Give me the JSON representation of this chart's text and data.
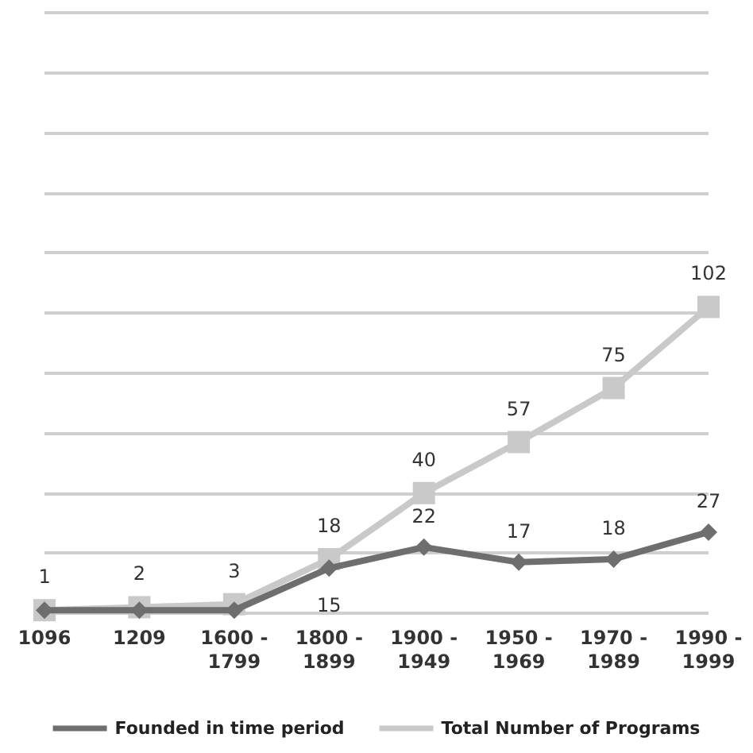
{
  "chart_data": {
    "type": "line",
    "categories": [
      "1096",
      "1209",
      "1600 -\n1799",
      "1800 -\n1899",
      "1900 -\n1949",
      "1950 -\n1969",
      "1970 -\n1989",
      "1990 -\n1999"
    ],
    "series": [
      {
        "name": "Founded in time period",
        "color": "#6e6e6e",
        "marker": "diamond",
        "values": [
          1,
          1,
          1,
          15,
          22,
          17,
          18,
          27
        ],
        "value_labels": [
          null,
          null,
          null,
          "15",
          "22",
          "17",
          "18",
          "27"
        ]
      },
      {
        "name": "Total Number of Programs",
        "color": "#c9c9c9",
        "marker": "square",
        "values": [
          1,
          2,
          3,
          18,
          40,
          57,
          75,
          102
        ],
        "value_labels": [
          "1",
          "2",
          "3",
          "18",
          "40",
          "57",
          "75",
          "102"
        ]
      }
    ],
    "ylim": [
      0,
      200
    ],
    "yticks": [
      0,
      20,
      40,
      60,
      80,
      100,
      120,
      140,
      160,
      180,
      200
    ],
    "tick_labels": "x",
    "grid": "y",
    "legend": "bottom",
    "line_style": "solid"
  }
}
